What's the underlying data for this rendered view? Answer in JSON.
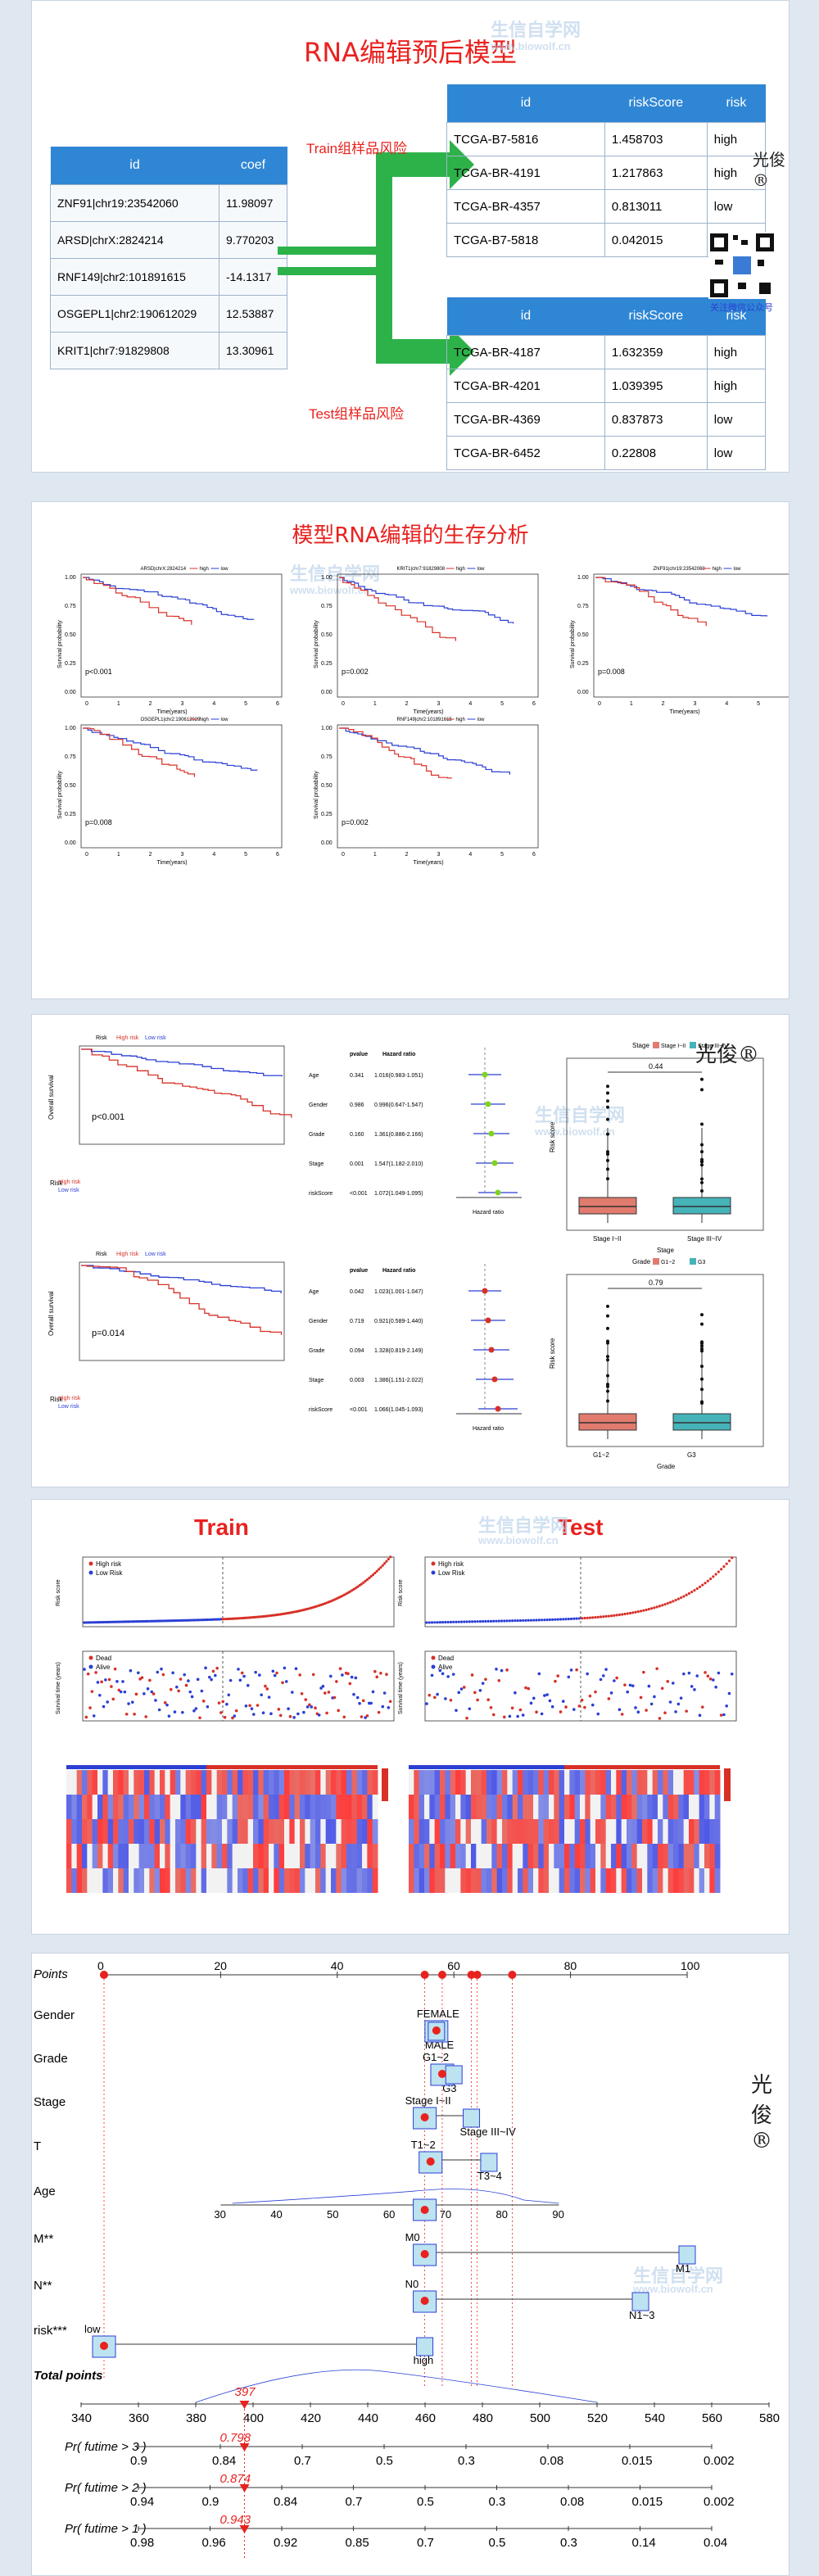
{
  "watermark": {
    "name": "生信自学网",
    "url": "www.biowolf.cn",
    "author": "光俊®"
  },
  "p1": {
    "title": "RNA编辑预后模型",
    "coef_table": {
      "headers": [
        "id",
        "coef"
      ],
      "rows": [
        [
          "ZNF91|chr19:23542060",
          "11.98097"
        ],
        [
          "ARSD|chrX:2824214",
          "9.770203"
        ],
        [
          "RNF149|chr2:101891615",
          "-14.1317"
        ],
        [
          "OSGEPL1|chr2:190612029",
          "12.53887"
        ],
        [
          "KRIT1|chr7:91829808",
          "13.30961"
        ]
      ]
    },
    "train_label": "Train组样品风险",
    "test_label": "Test组样品风险",
    "train_table": {
      "headers": [
        "id",
        "riskScore",
        "risk"
      ],
      "rows": [
        [
          "TCGA-B7-5816",
          "1.458703",
          "high"
        ],
        [
          "TCGA-BR-4191",
          "1.217863",
          "high"
        ],
        [
          "TCGA-BR-4357",
          "0.813011",
          "low"
        ],
        [
          "TCGA-B7-5818",
          "0.042015",
          "low"
        ]
      ]
    },
    "test_table": {
      "headers": [
        "id",
        "riskScore",
        "risk"
      ],
      "rows": [
        [
          "TCGA-BR-4187",
          "1.632359",
          "high"
        ],
        [
          "TCGA-BR-4201",
          "1.039395",
          "high"
        ],
        [
          "TCGA-BR-4369",
          "0.837873",
          "low"
        ],
        [
          "TCGA-BR-6452",
          "0.22808",
          "low"
        ]
      ]
    },
    "qr_caption": "关注微信公众号"
  },
  "p2": {
    "title": "模型RNA编辑的生存分析",
    "km": [
      {
        "gene": "ARSD|chrX:2824214",
        "p": "p<0.001"
      },
      {
        "gene": "KRIT1|chr7:91829808",
        "p": "p=0.002"
      },
      {
        "gene": "ZNF91|chr19:23542060",
        "p": "p=0.008"
      },
      {
        "gene": "OSGEPL1|chr2:190612029",
        "p": "p=0.008"
      },
      {
        "gene": "RNF149|chr2:101891615",
        "p": "p=0.002"
      }
    ],
    "legend_high": "high",
    "legend_low": "low",
    "ylabel": "Survival probability",
    "xlabel": "Time(years)"
  },
  "p3": {
    "risk_legend": [
      "Risk",
      "High risk",
      "Low risk"
    ],
    "os_label": "Overall survival",
    "p_top": "p<0.001",
    "p_bot": "p=0.014",
    "forest_headers": [
      "pvalue",
      "Hazard ratio"
    ],
    "forest_top": [
      [
        "Age",
        "0.341",
        "1.016(0.983-1.051)"
      ],
      [
        "Gender",
        "0.986",
        "0.996(0.647-1.547)"
      ],
      [
        "Grade",
        "0.160",
        "1.361(0.886-2.166)"
      ],
      [
        "Stage",
        "0.001",
        "1.547(1.182-2.010)"
      ],
      [
        "riskScore",
        "<0.001",
        "1.072(1.049-1.095)"
      ]
    ],
    "forest_bot": [
      [
        "Age",
        "0.042",
        "1.023(1.001-1.047)"
      ],
      [
        "Gender",
        "0.719",
        "0.921(0.589-1.440)"
      ],
      [
        "Grade",
        "0.094",
        "1.328(0.819-2.149)"
      ],
      [
        "Stage",
        "0.003",
        "1.386(1.151-2.022)"
      ],
      [
        "riskScore",
        "<0.001",
        "1.066(1.045-1.093)"
      ]
    ],
    "hr_label": "Hazard ratio",
    "box_top": {
      "legend_title": "Stage",
      "groups": [
        "Stage I~II",
        "Stage III~IV"
      ],
      "p": "0.44",
      "xlabel": "Stage",
      "ylabel": "Risk score"
    },
    "box_bot": {
      "legend_title": "Grade",
      "groups": [
        "G1~2",
        "G3"
      ],
      "p": "0.79",
      "xlabel": "Grade",
      "ylabel": "Risk score"
    }
  },
  "p4": {
    "train": "Train",
    "test": "Test",
    "risk_legend": [
      "High risk",
      "Low Risk"
    ],
    "status_legend": [
      "Dead",
      "Alive"
    ],
    "risk_ylabel": "Risk score",
    "surv_ylabel": "Survival time (years)"
  },
  "p5": {
    "points_label": "Points",
    "points_ticks": [
      "0",
      "20",
      "40",
      "60",
      "80",
      "100"
    ],
    "rows": [
      {
        "name": "Gender",
        "labels": [
          "FEMALE",
          "MALE"
        ]
      },
      {
        "name": "Grade",
        "labels": [
          "G1~2",
          "G3"
        ]
      },
      {
        "name": "Stage",
        "labels": [
          "Stage I~II",
          "Stage III~IV"
        ]
      },
      {
        "name": "T",
        "labels": [
          "T1~2",
          "T3~4"
        ]
      },
      {
        "name": "Age",
        "labels": [
          "30",
          "40",
          "50",
          "60",
          "70",
          "80",
          "90"
        ]
      },
      {
        "name": "M**",
        "labels": [
          "M0",
          "M1"
        ]
      },
      {
        "name": "N**",
        "labels": [
          "N0",
          "N1~3"
        ]
      },
      {
        "name": "risk***",
        "labels": [
          "low",
          "high"
        ]
      }
    ],
    "total_label": "Total points",
    "total_ticks": [
      "340",
      "360",
      "380",
      "400",
      "420",
      "440",
      "460",
      "480",
      "500",
      "520",
      "540",
      "560",
      "580"
    ],
    "total_value": "397",
    "pr3": {
      "label": "Pr( futime > 3 )",
      "value": "0.798",
      "ticks": [
        "0.9",
        "0.84",
        "0.7",
        "0.5",
        "0.3",
        "0.08",
        "0.015",
        "0.002"
      ]
    },
    "pr2": {
      "label": "Pr( futime > 2 )",
      "value": "0.874",
      "ticks": [
        "0.94",
        "0.9",
        "0.84",
        "0.7",
        "0.5",
        "0.3",
        "0.08",
        "0.015",
        "0.002"
      ]
    },
    "pr1": {
      "label": "Pr( futime > 1 )",
      "value": "0.943",
      "ticks": [
        "0.98",
        "0.96",
        "0.92",
        "0.85",
        "0.7",
        "0.5",
        "0.3",
        "0.14",
        "0.04"
      ]
    }
  },
  "colors": {
    "red": "#e8221f",
    "blue": "#2f86d4",
    "green": "#2db24a",
    "high": "#d73027",
    "low": "#2a3fd4"
  }
}
